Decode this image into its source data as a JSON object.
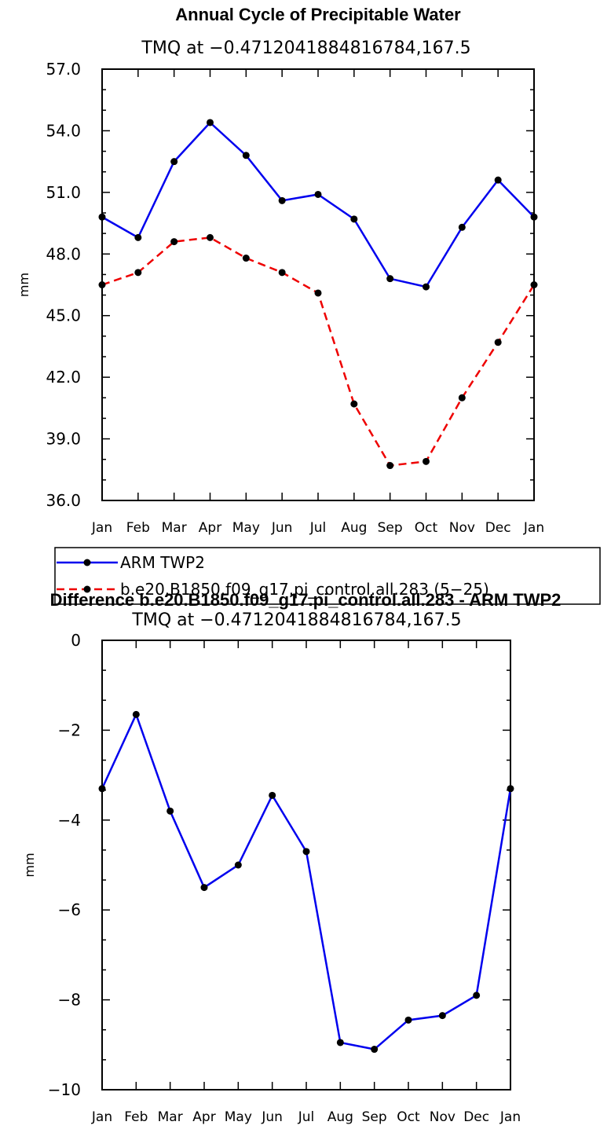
{
  "chart_data": [
    {
      "type": "line",
      "title": "Annual Cycle of Precipitable Water",
      "subtitle": "TMQ at −0.4712041884816784,167.5",
      "xlabel": "",
      "ylabel": "mm",
      "categories": [
        "Jan",
        "Feb",
        "Mar",
        "Apr",
        "May",
        "Jun",
        "Jul",
        "Aug",
        "Sep",
        "Oct",
        "Nov",
        "Dec",
        "Jan"
      ],
      "ylim": [
        36.0,
        57.0
      ],
      "yticks": [
        36.0,
        39.0,
        42.0,
        45.0,
        48.0,
        51.0,
        54.0,
        57.0
      ],
      "ytick_labels": [
        "36.0",
        "39.0",
        "42.0",
        "45.0",
        "48.0",
        "51.0",
        "54.0",
        "57.0"
      ],
      "series": [
        {
          "name": "ARM TWP2",
          "color": "#0000ee",
          "style": "solid",
          "values": [
            49.8,
            48.8,
            52.5,
            54.4,
            52.8,
            50.6,
            50.9,
            49.7,
            46.8,
            46.4,
            49.3,
            51.6,
            49.8
          ]
        },
        {
          "name": "b.e20.B1850.f09_g17.pi_control.all.283 (5−25)",
          "color": "#ee0000",
          "style": "dashed",
          "values": [
            46.5,
            47.1,
            48.6,
            48.8,
            47.8,
            47.1,
            46.1,
            40.7,
            37.7,
            37.9,
            41.0,
            43.7,
            46.5
          ]
        }
      ],
      "legend": {
        "position": "below"
      }
    },
    {
      "type": "line",
      "title": "Difference b.e20.B1850.f09_g17.pi_control.all.283 - ARM TWP2",
      "subtitle": "TMQ at −0.4712041884816784,167.5",
      "xlabel": "",
      "ylabel": "mm",
      "categories": [
        "Jan",
        "Feb",
        "Mar",
        "Apr",
        "May",
        "Jun",
        "Jul",
        "Aug",
        "Sep",
        "Oct",
        "Nov",
        "Dec",
        "Jan"
      ],
      "ylim": [
        -10,
        0
      ],
      "yticks": [
        -10,
        -8,
        -6,
        -4,
        -2,
        0
      ],
      "ytick_labels": [
        "−10",
        "−8",
        "−6",
        "−4",
        "−2",
        "0"
      ],
      "series": [
        {
          "name": "Difference",
          "color": "#0000ee",
          "style": "solid",
          "values": [
            -3.3,
            -1.65,
            -3.8,
            -5.5,
            -5.0,
            -3.45,
            -4.7,
            -8.95,
            -9.1,
            -8.45,
            -8.35,
            -7.9,
            -3.3
          ]
        }
      ]
    }
  ]
}
